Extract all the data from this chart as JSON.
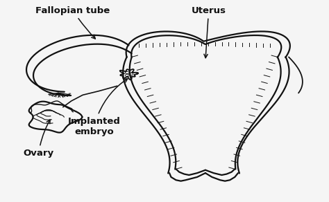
{
  "background_color": "#f5f5f5",
  "line_color": "#111111",
  "line_width": 1.6,
  "labels": {
    "fallopian_tube": "Fallopian tube",
    "uterus": "Uterus",
    "ovary": "Ovary",
    "implanted_embryo": "Implanted\nembryo"
  },
  "font_size": 9,
  "fig_width": 4.74,
  "fig_height": 2.92,
  "dpi": 100
}
